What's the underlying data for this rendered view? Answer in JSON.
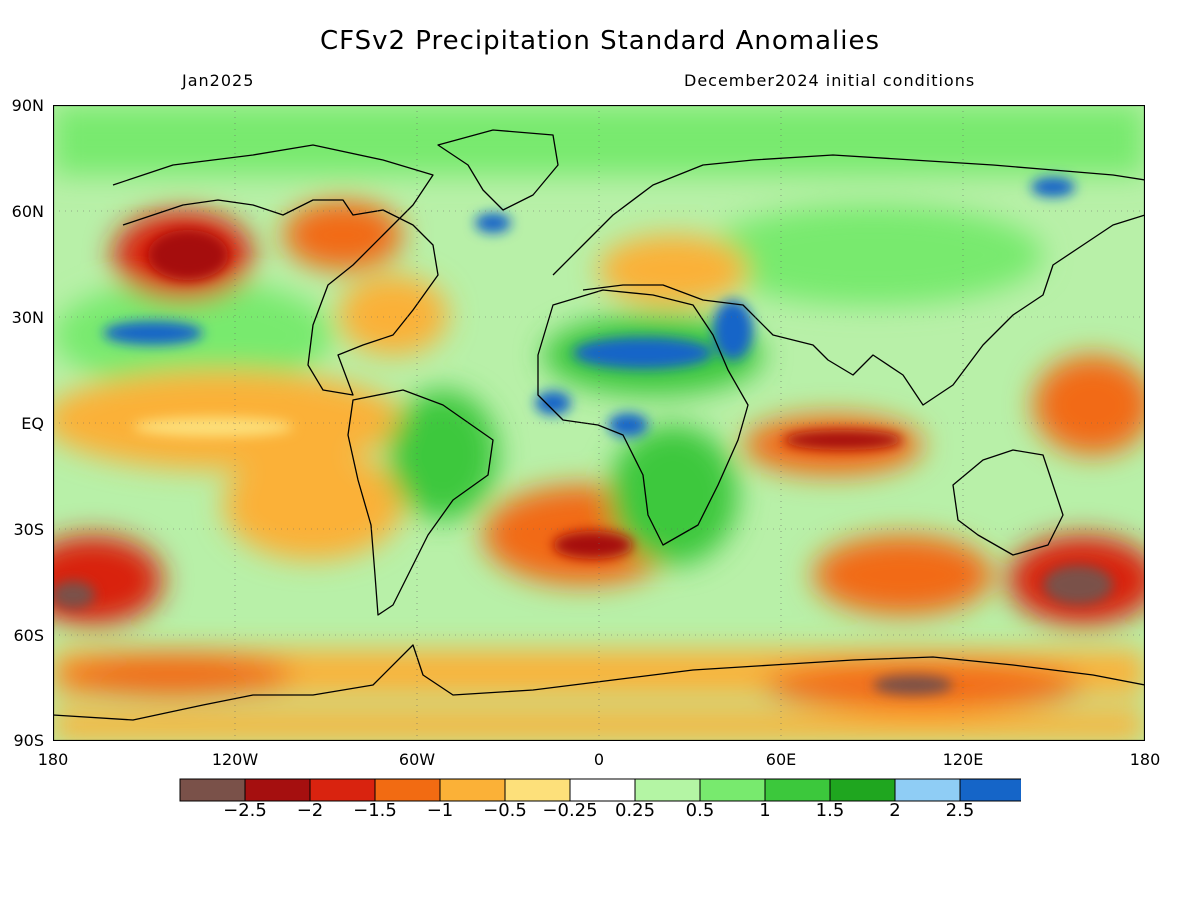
{
  "title": "CFSv2 Precipitation Standard Anomalies",
  "subtitle_left": "Jan2025",
  "subtitle_right": "December2024 initial conditions",
  "lat_labels": [
    "90N",
    "60N",
    "30N",
    "EQ",
    "30S",
    "60S",
    "90S"
  ],
  "lon_labels": [
    "180",
    "120W",
    "60W",
    "0",
    "60E",
    "120E",
    "180"
  ],
  "colorbar": {
    "colors": [
      "#7a5149",
      "#a50f0f",
      "#d9230f",
      "#f26b12",
      "#fbb137",
      "#fde07a",
      "#ffffff",
      "#b4f5a4",
      "#78ea6e",
      "#3cc83c",
      "#1fa61f",
      "#8fcdf5",
      "#1565c8"
    ],
    "labels": [
      "−2.5",
      "−2",
      "−1.5",
      "−1",
      "−0.5",
      "−0.25",
      "0.25",
      "0.5",
      "1",
      "1.5",
      "2",
      "2.5"
    ]
  }
}
